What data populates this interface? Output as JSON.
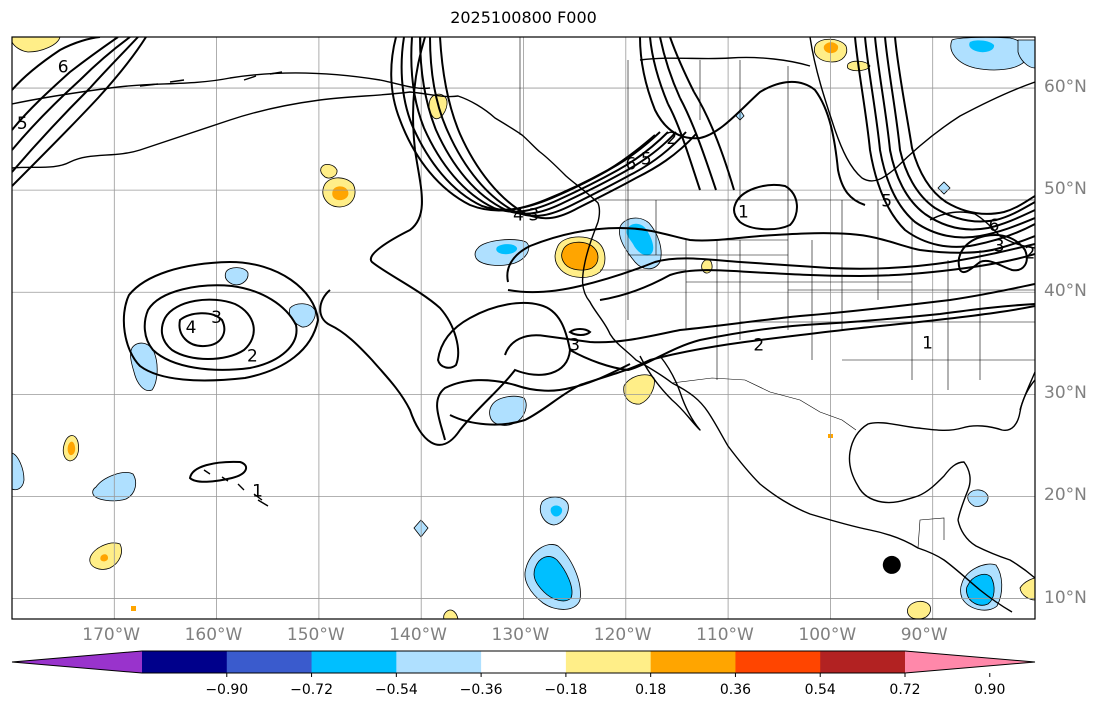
{
  "title": "2025100800 F000",
  "map": {
    "lon_range": [
      -180,
      -80
    ],
    "lat_range": [
      8,
      65
    ],
    "lon_ticks": [
      {
        "lon": -170,
        "label": "170°W"
      },
      {
        "lon": -160,
        "label": "160°W"
      },
      {
        "lon": -150,
        "label": "150°W"
      },
      {
        "lon": -140,
        "label": "140°W"
      },
      {
        "lon": -130,
        "label": "130°W"
      },
      {
        "lon": -120,
        "label": "120°W"
      },
      {
        "lon": -110,
        "label": "110°W"
      },
      {
        "lon": -100,
        "label": "100°W"
      },
      {
        "lon": -90,
        "label": "90°W"
      }
    ],
    "lat_ticks": [
      {
        "lat": 60,
        "label": "60°N"
      },
      {
        "lat": 50,
        "label": "50°N"
      },
      {
        "lat": 40,
        "label": "40°N"
      },
      {
        "lat": 30,
        "label": "30°N"
      },
      {
        "lat": 20,
        "label": "20°N"
      },
      {
        "lat": 10,
        "label": "10°N"
      }
    ],
    "gridlines": true,
    "contour_labels": [
      {
        "text": "6",
        "lon": -175,
        "lat": 62
      },
      {
        "text": "5",
        "lon": -179,
        "lat": 56.5
      },
      {
        "text": "4",
        "lon": -162.5,
        "lat": 36.5
      },
      {
        "text": "3",
        "lon": -160,
        "lat": 37.5
      },
      {
        "text": "2",
        "lon": -156.5,
        "lat": 33.7
      },
      {
        "text": "1",
        "lon": -156,
        "lat": 20.5
      },
      {
        "text": "4",
        "lon": -130.5,
        "lat": 47.5
      },
      {
        "text": "3",
        "lon": -129,
        "lat": 47.5
      },
      {
        "text": "6",
        "lon": -119.5,
        "lat": 52.5
      },
      {
        "text": "5",
        "lon": -118,
        "lat": 53
      },
      {
        "text": "2",
        "lon": -115.5,
        "lat": 55
      },
      {
        "text": "1",
        "lon": -108.5,
        "lat": 47.8
      },
      {
        "text": "3",
        "lon": -125,
        "lat": 34.8
      },
      {
        "text": "2",
        "lon": -107,
        "lat": 34.8
      },
      {
        "text": "1",
        "lon": -90.5,
        "lat": 35
      },
      {
        "text": "5",
        "lon": -94.5,
        "lat": 48.9
      },
      {
        "text": "6",
        "lon": -84,
        "lat": 46.5
      },
      {
        "text": "3",
        "lon": -83.5,
        "lat": 44.5
      },
      {
        "text": "2",
        "lon": -80.5,
        "lat": 43.8
      }
    ],
    "marker": {
      "name": "black dot",
      "lon": -94,
      "lat": 13.3
    }
  },
  "colorbar": {
    "tick_labels": [
      "−0.90",
      "−0.72",
      "−0.54",
      "−0.36",
      "−0.18",
      "0.18",
      "0.36",
      "0.54",
      "0.72",
      "0.90"
    ],
    "colors": [
      "#9933cc",
      "#00008b",
      "#3a5bcd",
      "#00bfff",
      "#afe0ff",
      "#ffffff",
      "#ffee88",
      "#ffa500",
      "#ff4500",
      "#b22222",
      "#ff88aa"
    ],
    "extend": "both"
  },
  "chart_data": {
    "type": "contour",
    "title": "2025100800 F000",
    "colorbar_levels": [
      -0.9,
      -0.72,
      -0.54,
      -0.36,
      -0.18,
      0.18,
      0.36,
      0.54,
      0.72,
      0.9
    ],
    "contour_levels_labeled": [
      1,
      2,
      3,
      4,
      5,
      6
    ]
  }
}
